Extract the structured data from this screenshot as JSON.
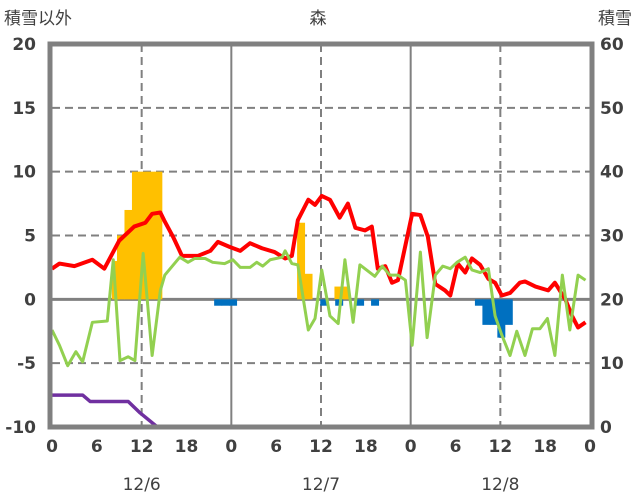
{
  "chart_data": {
    "type": "line",
    "title": "森",
    "left_axis_label": "積雪以外",
    "right_axis_label": "積雪",
    "ylim_left": [
      -10,
      20
    ],
    "ylim_right": [
      0,
      60
    ],
    "yticks_left": [
      "20",
      "15",
      "10",
      "5",
      "0",
      "-5",
      "-10"
    ],
    "yticks_right": [
      "60",
      "50",
      "40",
      "30",
      "20",
      "10",
      "0"
    ],
    "xlim_hours": [
      0,
      72
    ],
    "xticks": [
      "0",
      "6",
      "12",
      "18",
      "0",
      "6",
      "12",
      "18",
      "0",
      "6",
      "12",
      "18",
      "0"
    ],
    "dates": [
      "12/6",
      "12/7",
      "12/8"
    ],
    "colors": {
      "temp": "#ff0000",
      "wind": "#92d050",
      "precip": "#ffc000",
      "snow_change": "#0070c0",
      "snow_depth": "#7030a0"
    },
    "series": [
      {
        "name": "red",
        "axis": "left",
        "points": [
          [
            0,
            2.4
          ],
          [
            1,
            2.8
          ],
          [
            3,
            2.6
          ],
          [
            5.4,
            3.1
          ],
          [
            7,
            2.4
          ],
          [
            9,
            4.6
          ],
          [
            11,
            5.7
          ],
          [
            12.5,
            6.0
          ],
          [
            13.4,
            6.7
          ],
          [
            14.5,
            6.8
          ],
          [
            15,
            6.2
          ],
          [
            16.2,
            4.9
          ],
          [
            17.4,
            3.4
          ],
          [
            19.5,
            3.4
          ],
          [
            21.2,
            3.8
          ],
          [
            22.2,
            4.5
          ],
          [
            23.8,
            4.1
          ],
          [
            25.2,
            3.8
          ],
          [
            26.5,
            4.4
          ],
          [
            28.1,
            4.0
          ],
          [
            29.8,
            3.7
          ],
          [
            31.2,
            3.2
          ],
          [
            32.1,
            3.4
          ],
          [
            32.9,
            6.2
          ],
          [
            34.3,
            7.8
          ],
          [
            35.2,
            7.4
          ],
          [
            36.1,
            8.1
          ],
          [
            37.2,
            7.8
          ],
          [
            38.5,
            6.4
          ],
          [
            39.6,
            7.5
          ],
          [
            40.6,
            5.6
          ],
          [
            41.9,
            5.4
          ],
          [
            42.8,
            5.7
          ],
          [
            43.6,
            2.4
          ],
          [
            44.6,
            2.6
          ],
          [
            45.5,
            1.3
          ],
          [
            46.3,
            1.5
          ],
          [
            48.2,
            6.7
          ],
          [
            49.3,
            6.6
          ],
          [
            50.3,
            4.9
          ],
          [
            51.3,
            1.2
          ],
          [
            52.6,
            0.7
          ],
          [
            53.3,
            0.3
          ],
          [
            54.3,
            2.8
          ],
          [
            55.3,
            2.1
          ],
          [
            56.2,
            3.2
          ],
          [
            57.3,
            2.7
          ],
          [
            58.4,
            1.6
          ],
          [
            59.3,
            1.3
          ],
          [
            60.2,
            0.3
          ],
          [
            61.3,
            0.5
          ],
          [
            62.6,
            1.3
          ],
          [
            63.3,
            1.4
          ],
          [
            64.7,
            1.0
          ],
          [
            66.4,
            0.7
          ],
          [
            67.3,
            1.3
          ],
          [
            68.7,
            0
          ],
          [
            69.6,
            -1.3
          ],
          [
            70.4,
            -2.2
          ],
          [
            71.4,
            -1.8
          ]
        ]
      },
      {
        "name": "green",
        "axis": "left",
        "points": [
          [
            0,
            -2.4
          ],
          [
            1,
            -3.6
          ],
          [
            2.1,
            -5.2
          ],
          [
            3.2,
            -4.1
          ],
          [
            4.1,
            -4.9
          ],
          [
            5.4,
            -1.8
          ],
          [
            7.4,
            -1.7
          ],
          [
            8.2,
            3.1
          ],
          [
            9.1,
            -4.8
          ],
          [
            10.2,
            -4.5
          ],
          [
            11.1,
            -4.8
          ],
          [
            12.2,
            3.6
          ],
          [
            13.4,
            -4.4
          ],
          [
            14.5,
            0.7
          ],
          [
            15.1,
            1.9
          ],
          [
            17.1,
            3.3
          ],
          [
            18.2,
            2.9
          ],
          [
            19.1,
            3.2
          ],
          [
            20.5,
            3.2
          ],
          [
            21.5,
            2.9
          ],
          [
            23.1,
            2.8
          ],
          [
            24.2,
            3.1
          ],
          [
            25.2,
            2.5
          ],
          [
            26.5,
            2.5
          ],
          [
            27.4,
            2.9
          ],
          [
            28.2,
            2.6
          ],
          [
            29.2,
            3.1
          ],
          [
            30.8,
            3.3
          ],
          [
            31.2,
            3.8
          ],
          [
            32.1,
            2.8
          ],
          [
            32.9,
            2.7
          ],
          [
            34.3,
            -2.4
          ],
          [
            35.2,
            -1.5
          ],
          [
            36.1,
            2.3
          ],
          [
            37.2,
            -1.3
          ],
          [
            38.3,
            -1.9
          ],
          [
            39.2,
            3.1
          ],
          [
            40.3,
            -1.8
          ],
          [
            41.2,
            2.7
          ],
          [
            43.2,
            1.8
          ],
          [
            44.2,
            2.6
          ],
          [
            45.2,
            1.9
          ],
          [
            46.3,
            1.9
          ],
          [
            47.3,
            1.5
          ],
          [
            48.2,
            -3.6
          ],
          [
            49.3,
            3.7
          ],
          [
            50.2,
            -3.0
          ],
          [
            51.3,
            1.9
          ],
          [
            52.3,
            2.6
          ],
          [
            53.3,
            2.4
          ],
          [
            54.2,
            2.9
          ],
          [
            55.3,
            3.3
          ],
          [
            56.2,
            2.3
          ],
          [
            57.3,
            2.1
          ],
          [
            58.4,
            2.4
          ],
          [
            59.3,
            -1.3
          ],
          [
            60.2,
            -2.8
          ],
          [
            61.3,
            -4.4
          ],
          [
            62.2,
            -2.5
          ],
          [
            63.3,
            -4.4
          ],
          [
            64.3,
            -2.3
          ],
          [
            65.3,
            -2.3
          ],
          [
            66.3,
            -1.5
          ],
          [
            67.3,
            -4.4
          ],
          [
            68.3,
            1.9
          ],
          [
            69.3,
            -2.4
          ],
          [
            70.4,
            1.9
          ],
          [
            71.4,
            1.5
          ]
        ]
      },
      {
        "name": "purple",
        "axis": "right",
        "points": [
          [
            0,
            5
          ],
          [
            4.1,
            5
          ],
          [
            5.1,
            4
          ],
          [
            10.2,
            4
          ],
          [
            11.8,
            2.2
          ],
          [
            14.1,
            0
          ],
          [
            72,
            0
          ]
        ]
      }
    ],
    "bars": [
      [
        8,
        3
      ],
      [
        8.7,
        5
      ],
      [
        9.7,
        7
      ],
      [
        10.7,
        10
      ],
      [
        11.7,
        10
      ],
      [
        12.7,
        10
      ],
      [
        13.7,
        10
      ],
      [
        21.7,
        -0.5
      ],
      [
        22.7,
        -0.5
      ],
      [
        23.7,
        -0.5
      ],
      [
        32.8,
        6
      ],
      [
        33.8,
        2
      ],
      [
        35.9,
        -0.5
      ],
      [
        37.8,
        1
      ],
      [
        38.8,
        1
      ],
      [
        37.9,
        -0.5
      ],
      [
        40.7,
        -0.5
      ],
      [
        42.7,
        -0.5
      ],
      [
        56.6,
        -0.5
      ],
      [
        57.6,
        -2
      ],
      [
        58.6,
        -2
      ],
      [
        59.6,
        -3
      ],
      [
        60.6,
        -2
      ]
    ]
  }
}
